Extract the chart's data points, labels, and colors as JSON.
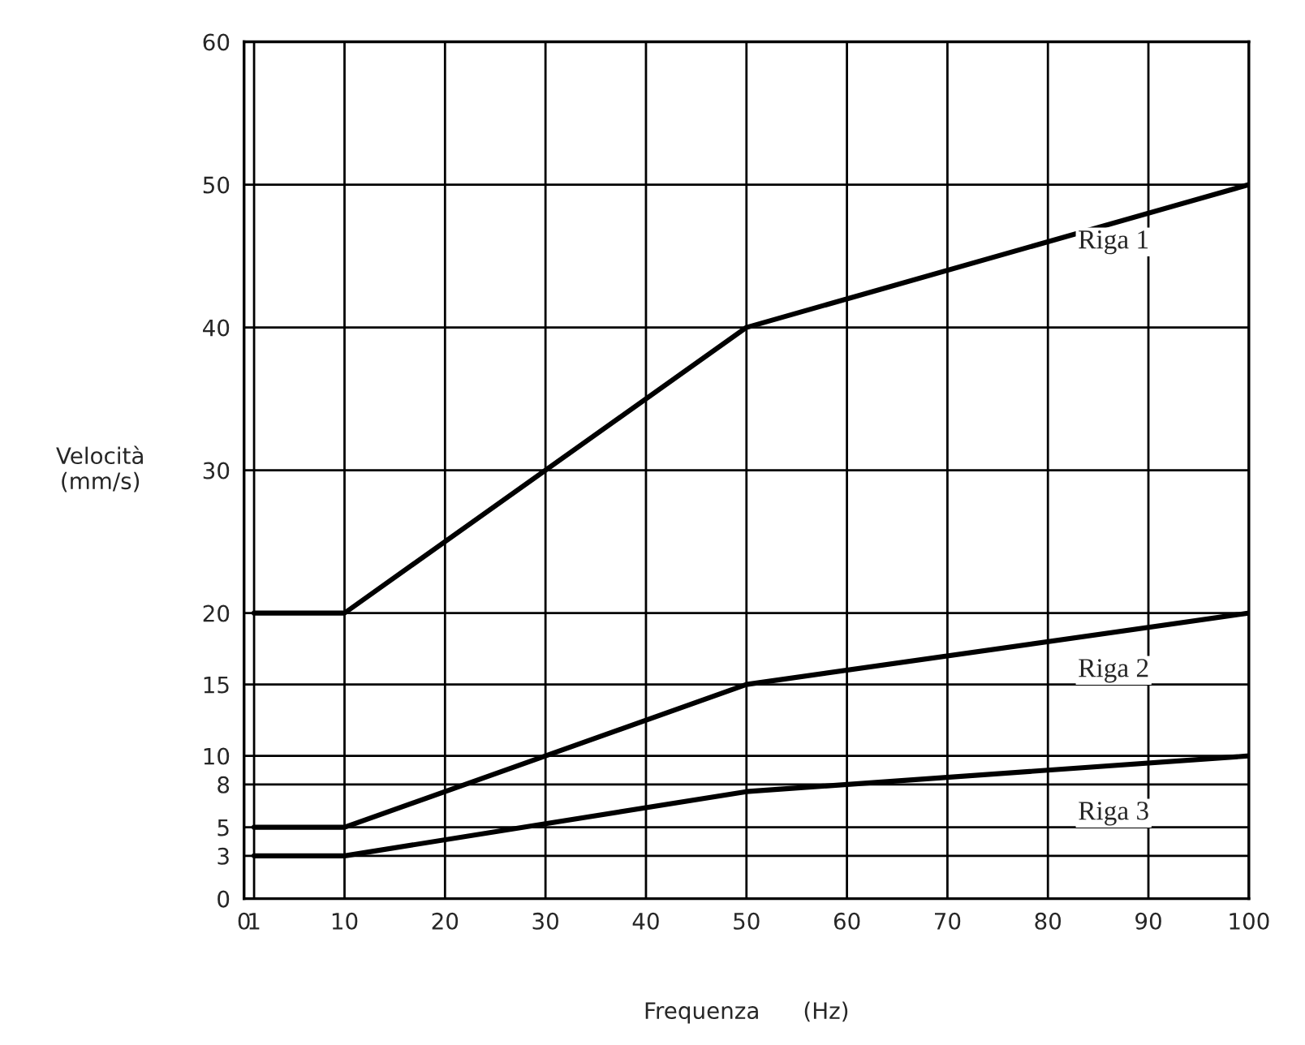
{
  "chart_data": {
    "type": "line",
    "xlabel": "Frequenza      (Hz)",
    "ylabel": "Velocità\n(mm/s)",
    "xlim": [
      0,
      100
    ],
    "ylim": [
      0,
      60
    ],
    "xticks": [
      0,
      1,
      10,
      20,
      30,
      40,
      50,
      60,
      70,
      80,
      90,
      100
    ],
    "yticks": [
      0,
      3,
      5,
      8,
      10,
      15,
      20,
      30,
      40,
      50,
      60
    ],
    "grid": true,
    "marker": "none",
    "line_style": "solid",
    "series": [
      {
        "name": "Riga 1",
        "color": "#000000",
        "x": [
          1,
          10,
          50,
          100
        ],
        "values": [
          20,
          20,
          40,
          50
        ]
      },
      {
        "name": "Riga 2",
        "color": "#000000",
        "x": [
          1,
          10,
          50,
          100
        ],
        "values": [
          5,
          5,
          15,
          20
        ]
      },
      {
        "name": "Riga 3",
        "color": "#000000",
        "x": [
          1,
          10,
          50,
          100
        ],
        "values": [
          3,
          3,
          7.5,
          10
        ]
      }
    ]
  }
}
